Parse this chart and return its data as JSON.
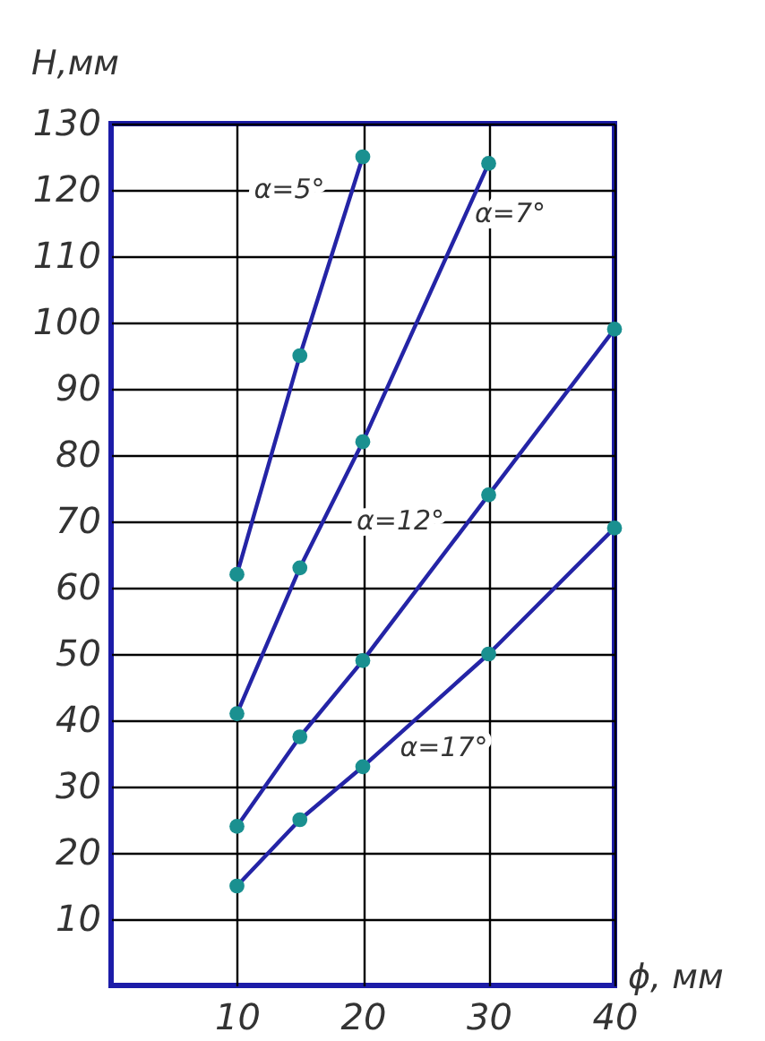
{
  "chart_data": {
    "type": "line",
    "xlabel": "ϕ, мм",
    "ylabel": "Н,мм",
    "xlim": [
      0,
      40
    ],
    "ylim": [
      0,
      130
    ],
    "xticks": [
      10,
      20,
      30,
      40
    ],
    "yticks": [
      10,
      20,
      30,
      40,
      50,
      60,
      70,
      80,
      90,
      100,
      110,
      120,
      130
    ],
    "grid": true,
    "legend": false,
    "line_style": "solid",
    "series": [
      {
        "name": "α=5°",
        "color": "#2424a6",
        "x": [
          10,
          15,
          20
        ],
        "values": [
          62,
          95,
          125
        ]
      },
      {
        "name": "α=7°",
        "color": "#2424a6",
        "x": [
          10,
          15,
          20,
          30
        ],
        "values": [
          41,
          63,
          82,
          124
        ]
      },
      {
        "name": "α=12°",
        "color": "#2424a6",
        "x": [
          10,
          15,
          20,
          30,
          40
        ],
        "values": [
          24,
          37.5,
          49,
          74,
          99
        ]
      },
      {
        "name": "α=17°",
        "color": "#2424a6",
        "x": [
          10,
          15,
          20,
          30,
          40
        ],
        "values": [
          15,
          25,
          33,
          50,
          69
        ]
      },
      {
        "type": "scatter",
        "marker": "circle",
        "color": "#1a9090",
        "x": [
          10,
          15,
          20,
          10,
          15,
          20,
          30,
          10,
          15,
          20,
          30,
          40,
          10,
          15,
          20,
          30,
          40
        ],
        "values": [
          62,
          95,
          125,
          41,
          63,
          82,
          124,
          24,
          37.5,
          49,
          74,
          99,
          15,
          25,
          33,
          50,
          69
        ]
      }
    ]
  }
}
